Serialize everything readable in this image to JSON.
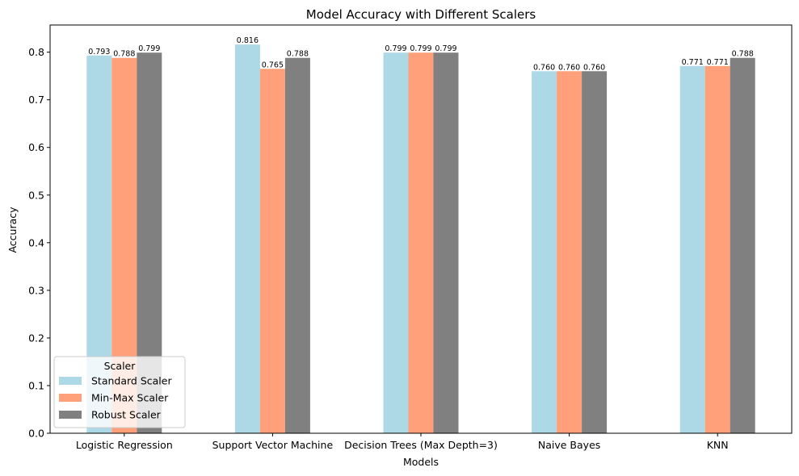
{
  "chart_data": {
    "type": "bar",
    "title": "Model Accuracy with Different Scalers",
    "xlabel": "Models",
    "ylabel": "Accuracy",
    "categories": [
      "Logistic Regression",
      "Support Vector Machine",
      "Decision Trees (Max Depth=3)",
      "Naive Bayes",
      "KNN"
    ],
    "series": [
      {
        "name": "Standard Scaler",
        "color": "#add8e6",
        "values": [
          0.793,
          0.816,
          0.799,
          0.76,
          0.771
        ]
      },
      {
        "name": "Min-Max Scaler",
        "color": "#ffa07a",
        "values": [
          0.788,
          0.765,
          0.799,
          0.76,
          0.771
        ]
      },
      {
        "name": "Robust Scaler",
        "color": "#808080",
        "values": [
          0.799,
          0.788,
          0.799,
          0.76,
          0.788
        ]
      }
    ],
    "data_labels": [
      [
        "0.793",
        "0.816",
        "0.799",
        "0.760",
        "0.771"
      ],
      [
        "0.788",
        "0.765",
        "0.799",
        "0.760",
        "0.771"
      ],
      [
        "0.799",
        "0.788",
        "0.799",
        "0.760",
        "0.788"
      ]
    ],
    "ylim": [
      0,
      0.857
    ],
    "yticks": [
      0.0,
      0.1,
      0.2,
      0.3,
      0.4,
      0.5,
      0.6,
      0.7,
      0.8
    ],
    "ytick_labels": [
      "0.0",
      "0.1",
      "0.2",
      "0.3",
      "0.4",
      "0.5",
      "0.6",
      "0.7",
      "0.8"
    ],
    "grid": false,
    "legend": {
      "title": "Scaler",
      "placement": "lower-left"
    }
  }
}
